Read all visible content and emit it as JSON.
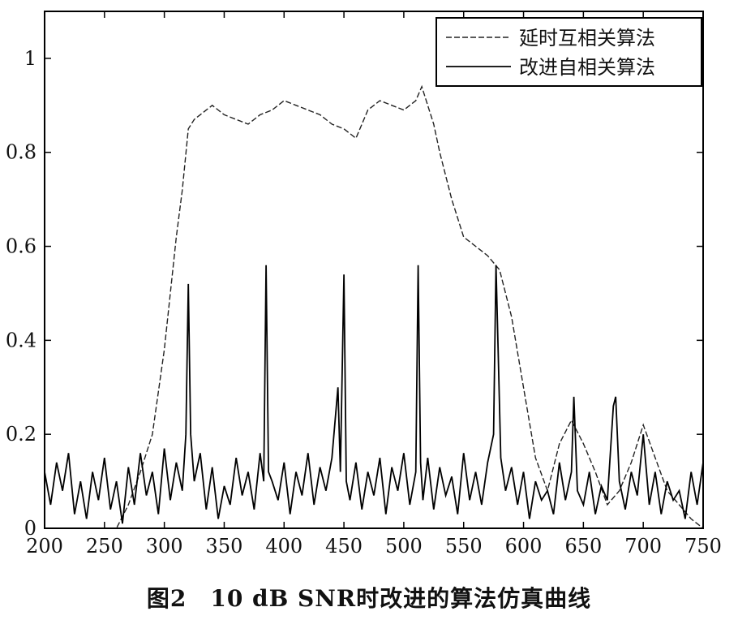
{
  "caption": "图2　10 dB SNR时改进的算法仿真曲线",
  "chart_data": {
    "type": "line",
    "x_ticks": [
      200,
      250,
      300,
      350,
      400,
      450,
      500,
      550,
      600,
      650,
      700,
      750
    ],
    "y_ticks": [
      0,
      0.2,
      0.4,
      0.6,
      0.8,
      1
    ],
    "y_tick_labels": [
      "0",
      "0.2",
      "0.4",
      "0.6",
      "0.8",
      "1"
    ],
    "xlim": [
      200,
      750
    ],
    "ylim": [
      0,
      1.1
    ],
    "grid": false,
    "legend_position": "top-right",
    "series": [
      {
        "name": "延时互相关算法",
        "style": "dashed",
        "color": "#222222",
        "x": [
          200,
          250,
          260,
          270,
          280,
          290,
          300,
          305,
          310,
          315,
          320,
          325,
          330,
          340,
          350,
          360,
          370,
          380,
          390,
          400,
          410,
          420,
          430,
          440,
          450,
          460,
          470,
          480,
          490,
          500,
          510,
          515,
          520,
          525,
          530,
          540,
          550,
          560,
          570,
          580,
          590,
          600,
          610,
          620,
          630,
          640,
          650,
          660,
          670,
          680,
          690,
          700,
          710,
          720,
          730,
          740,
          750
        ],
        "y": [
          0.0,
          0.0,
          0.0,
          0.05,
          0.12,
          0.2,
          0.38,
          0.5,
          0.62,
          0.72,
          0.85,
          0.87,
          0.88,
          0.9,
          0.88,
          0.87,
          0.86,
          0.88,
          0.89,
          0.91,
          0.9,
          0.89,
          0.88,
          0.86,
          0.85,
          0.83,
          0.89,
          0.91,
          0.9,
          0.89,
          0.91,
          0.94,
          0.9,
          0.86,
          0.8,
          0.7,
          0.62,
          0.6,
          0.58,
          0.55,
          0.45,
          0.3,
          0.15,
          0.08,
          0.18,
          0.23,
          0.18,
          0.12,
          0.05,
          0.08,
          0.14,
          0.22,
          0.15,
          0.08,
          0.05,
          0.02,
          0.0
        ]
      },
      {
        "name": "改进自相关算法",
        "style": "solid",
        "color": "#000000",
        "x": [
          200,
          205,
          210,
          215,
          220,
          225,
          230,
          235,
          240,
          245,
          250,
          255,
          260,
          265,
          270,
          275,
          280,
          285,
          290,
          295,
          300,
          305,
          310,
          315,
          318,
          320,
          322,
          325,
          330,
          335,
          340,
          345,
          350,
          355,
          360,
          365,
          370,
          375,
          380,
          383,
          385,
          387,
          390,
          395,
          400,
          405,
          410,
          415,
          420,
          425,
          430,
          435,
          440,
          445,
          447,
          450,
          452,
          455,
          460,
          465,
          470,
          475,
          480,
          485,
          490,
          495,
          500,
          505,
          510,
          512,
          514,
          516,
          520,
          525,
          530,
          535,
          540,
          545,
          550,
          555,
          560,
          565,
          570,
          575,
          577,
          579,
          581,
          585,
          590,
          595,
          600,
          605,
          610,
          615,
          620,
          625,
          630,
          635,
          640,
          642,
          645,
          650,
          655,
          660,
          665,
          670,
          675,
          677,
          680,
          685,
          690,
          695,
          700,
          705,
          710,
          715,
          720,
          725,
          730,
          735,
          740,
          745,
          750
        ],
        "y": [
          0.12,
          0.05,
          0.14,
          0.08,
          0.16,
          0.03,
          0.1,
          0.02,
          0.12,
          0.06,
          0.15,
          0.04,
          0.1,
          0.01,
          0.13,
          0.05,
          0.16,
          0.07,
          0.12,
          0.03,
          0.17,
          0.06,
          0.14,
          0.08,
          0.2,
          0.52,
          0.2,
          0.1,
          0.16,
          0.04,
          0.13,
          0.02,
          0.09,
          0.05,
          0.15,
          0.07,
          0.12,
          0.04,
          0.16,
          0.1,
          0.56,
          0.12,
          0.1,
          0.06,
          0.14,
          0.03,
          0.12,
          0.07,
          0.16,
          0.05,
          0.13,
          0.08,
          0.15,
          0.3,
          0.12,
          0.54,
          0.1,
          0.06,
          0.14,
          0.04,
          0.12,
          0.07,
          0.15,
          0.03,
          0.13,
          0.08,
          0.16,
          0.05,
          0.12,
          0.56,
          0.14,
          0.06,
          0.15,
          0.04,
          0.13,
          0.07,
          0.11,
          0.03,
          0.16,
          0.06,
          0.12,
          0.05,
          0.14,
          0.2,
          0.56,
          0.36,
          0.15,
          0.08,
          0.13,
          0.05,
          0.12,
          0.02,
          0.1,
          0.06,
          0.08,
          0.03,
          0.14,
          0.06,
          0.12,
          0.28,
          0.08,
          0.05,
          0.12,
          0.03,
          0.09,
          0.06,
          0.26,
          0.28,
          0.1,
          0.04,
          0.12,
          0.07,
          0.2,
          0.05,
          0.12,
          0.03,
          0.1,
          0.06,
          0.08,
          0.02,
          0.12,
          0.05,
          0.14
        ]
      }
    ]
  }
}
